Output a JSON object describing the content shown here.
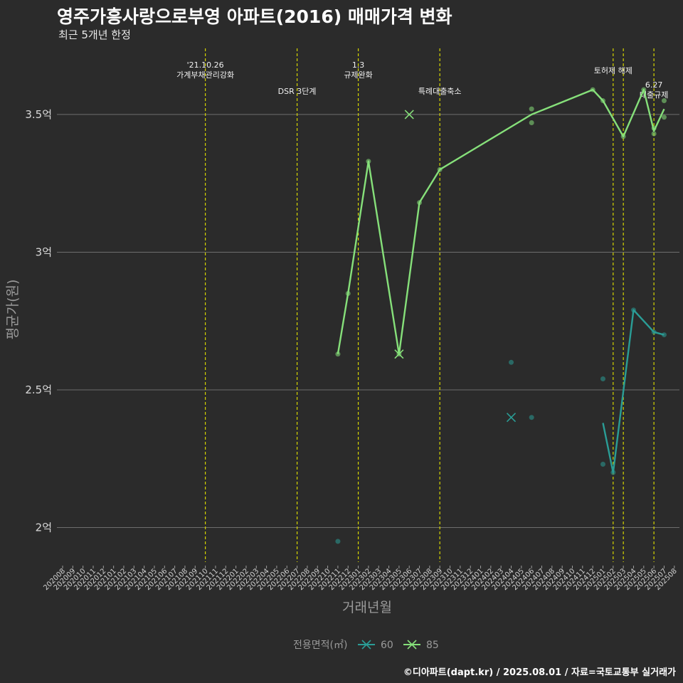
{
  "chart_data": {
    "type": "line",
    "title": "영주가흥사랑으로부영 아파트(2016) 매매가격 변화",
    "subtitle": "최근 5개년 한정",
    "xlabel": "거래년월",
    "ylabel": "평균가(원)",
    "caption": "©디아파트(dapt.kr) / 2025.08.01 / 자료=국토교통부 실거래가",
    "ylim": [
      1.88,
      3.74
    ],
    "y_ticks": [
      {
        "value": 2.0,
        "label": "2억"
      },
      {
        "value": 2.5,
        "label": "2.5억"
      },
      {
        "value": 3.0,
        "label": "3억"
      },
      {
        "value": 3.5,
        "label": "3.5억"
      }
    ],
    "grid": true,
    "x_categories": [
      "202008",
      "202009",
      "202010",
      "202011",
      "202012",
      "202101",
      "202102",
      "202103",
      "202104",
      "202105",
      "202106",
      "202107",
      "202108",
      "202109",
      "202110",
      "202111",
      "202112",
      "202201",
      "202202",
      "202203",
      "202204",
      "202205",
      "202206",
      "202207",
      "202208",
      "202209",
      "202210",
      "202211",
      "202212",
      "202301",
      "202302",
      "202303",
      "202304",
      "202305",
      "202306",
      "202307",
      "202308",
      "202309",
      "202310",
      "202311",
      "202312",
      "202401",
      "202402",
      "202403",
      "202404",
      "202405",
      "202406",
      "202407",
      "202408",
      "202409",
      "202410",
      "202411",
      "202412",
      "202501",
      "202502",
      "202503",
      "202504",
      "202505",
      "202506",
      "202507",
      "202508"
    ],
    "legend": {
      "title": "전용면적(㎡)",
      "position": "bottom"
    },
    "series": [
      {
        "name": "60",
        "color": "#2a9d96",
        "line": [
          [
            "202501",
            2.38
          ],
          [
            "202502",
            2.2
          ],
          [
            "202504",
            2.79
          ],
          [
            "202506",
            2.71
          ],
          [
            "202507",
            2.7
          ]
        ],
        "points": [
          [
            "202211",
            1.95
          ],
          [
            "202404",
            2.6
          ],
          [
            "202406",
            2.4
          ],
          [
            "202501",
            2.54
          ],
          [
            "202501",
            2.23
          ],
          [
            "202502",
            2.2
          ],
          [
            "202504",
            2.79
          ],
          [
            "202506",
            2.71
          ],
          [
            "202507",
            2.7
          ]
        ],
        "cross": [
          [
            "202404",
            2.4
          ]
        ]
      },
      {
        "name": "85",
        "color": "#86e07a",
        "line": [
          [
            "202211",
            2.63
          ],
          [
            "202212",
            2.85
          ],
          [
            "202302",
            3.33
          ],
          [
            "202305",
            2.63
          ],
          [
            "202307",
            3.18
          ],
          [
            "202309",
            3.3
          ],
          [
            "202406",
            3.5
          ],
          [
            "202412",
            3.59
          ],
          [
            "202501",
            3.55
          ],
          [
            "202503",
            3.42
          ],
          [
            "202505",
            3.59
          ],
          [
            "202506",
            3.44
          ],
          [
            "202507",
            3.52
          ]
        ],
        "points": [
          [
            "202211",
            2.63
          ],
          [
            "202212",
            2.85
          ],
          [
            "202302",
            3.33
          ],
          [
            "202305",
            2.63
          ],
          [
            "202307",
            3.18
          ],
          [
            "202309",
            3.3
          ],
          [
            "202406",
            3.52
          ],
          [
            "202406",
            3.47
          ],
          [
            "202412",
            3.59
          ],
          [
            "202501",
            3.55
          ],
          [
            "202503",
            3.42
          ],
          [
            "202505",
            3.59
          ],
          [
            "202506",
            3.43
          ],
          [
            "202506",
            3.45
          ],
          [
            "202507",
            3.55
          ],
          [
            "202507",
            3.49
          ]
        ],
        "cross": [
          [
            "202306",
            3.5
          ],
          [
            "202305",
            2.63
          ]
        ]
      }
    ],
    "annotations": [
      {
        "x": "202110",
        "lines": [
          "'21.10.26",
          "가계부채관리강화"
        ],
        "align": "top"
      },
      {
        "x": "202207",
        "lines": [
          "DSR 3단계"
        ],
        "align": "low"
      },
      {
        "x": "202301",
        "lines": [
          "1.3",
          "규제완화"
        ],
        "align": "top"
      },
      {
        "x": "202309",
        "lines": [
          "특례대출축소"
        ],
        "align": "low"
      },
      {
        "x": "202502",
        "lines": [
          "토허제 해제"
        ],
        "align": "mid"
      },
      {
        "x": "202503",
        "lines": [],
        "align": "none"
      },
      {
        "x": "202506",
        "lines": [
          "6.27",
          "대출규제"
        ],
        "align": "right"
      }
    ]
  }
}
